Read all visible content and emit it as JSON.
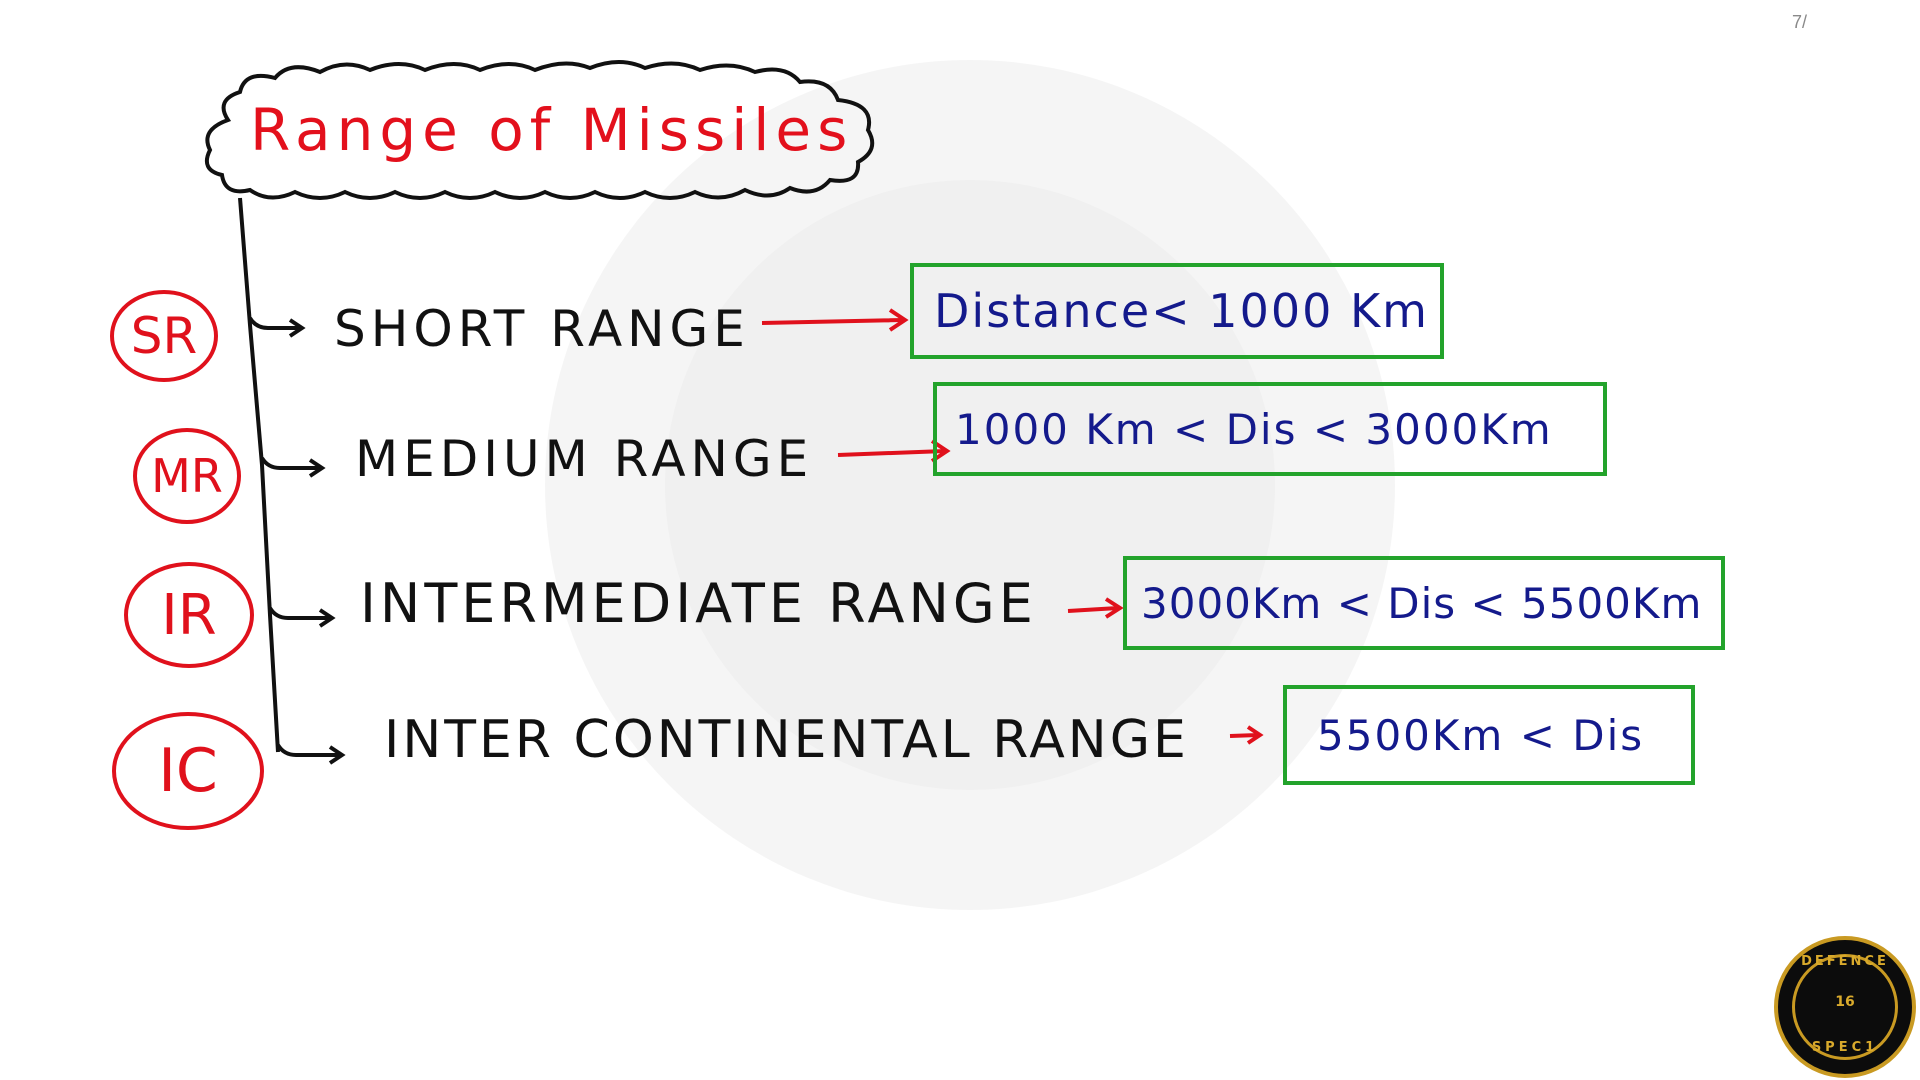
{
  "page_number": "7/",
  "title": "Range of Missiles",
  "ranges": [
    {
      "abbr": "SR",
      "label": "SHORT RANGE",
      "distance": "Distance< 1000 Km"
    },
    {
      "abbr": "MR",
      "label": "MEDIUM RANGE",
      "distance": "1000 Km < Dis < 3000Km"
    },
    {
      "abbr": "IR",
      "label": "INTERMEDIATE RANGE",
      "distance": "3000Km < Dis < 5500Km"
    },
    {
      "abbr": "IC",
      "label": "INTER CONTINENTAL RANGE",
      "distance": "5500Km < Dis"
    }
  ],
  "logo": {
    "top": "DEFENCE",
    "middle": "16",
    "bottom": "SPEC1"
  },
  "colors": {
    "title": "#e3101c",
    "badge": "#e0111c",
    "box_border": "#23a32b",
    "box_text": "#141a8c",
    "arrow_red": "#e0111c",
    "tree_line": "#111111"
  }
}
